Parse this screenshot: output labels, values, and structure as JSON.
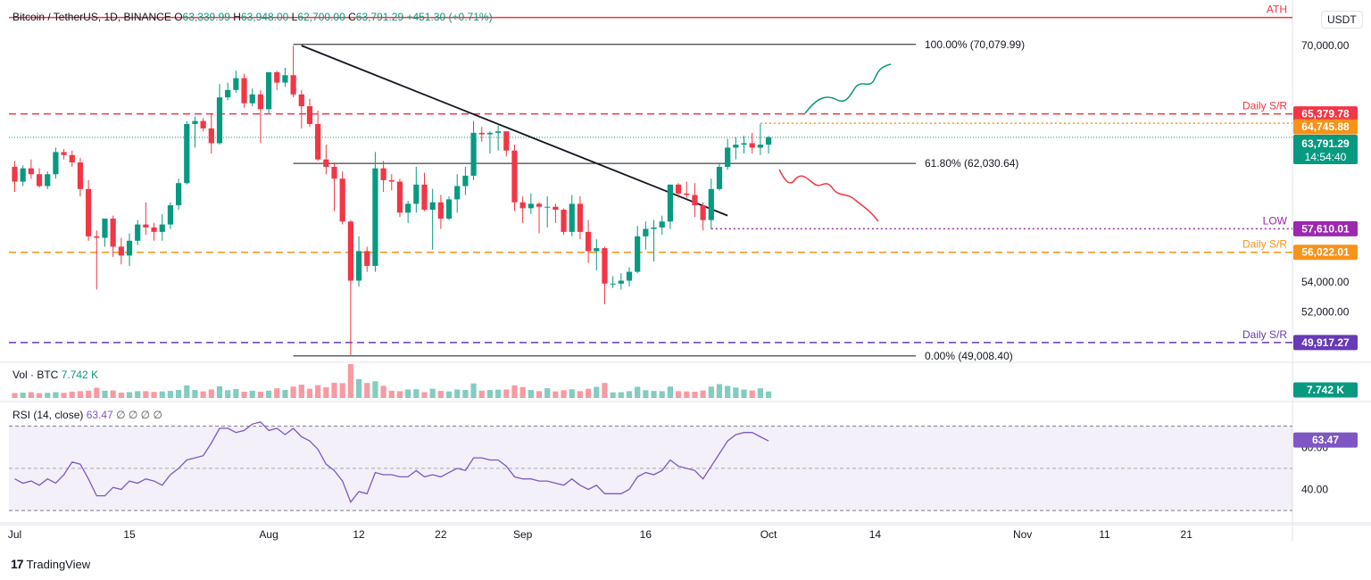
{
  "header": {
    "symbol": "Bitcoin / TetherUS, 1D, BINANCE",
    "o_label": "O",
    "o": "63,339.99",
    "h_label": "H",
    "h": "63,948.00",
    "l_label": "L",
    "l": "62,700.00",
    "c_label": "C",
    "c": "63,791.29",
    "change": "+451.30 (+0.71%)"
  },
  "currency": "USDT",
  "vol_legend": {
    "label": "Vol · BTC",
    "value": "7.742 K"
  },
  "rsi_legend": {
    "label": "RSI (14, close)",
    "value": "63.47",
    "extra": "∅ ∅ ∅ ∅"
  },
  "logo": "TradingView",
  "colors": {
    "up": "#089981",
    "down": "#f23645",
    "ath": "#f23645",
    "sr_red": "#f23645",
    "orange": "#f7931a",
    "purple": "#7e57c2",
    "navy": "#673ab7"
  },
  "chart_data": {
    "type": "candlestick",
    "price_axis": {
      "min": 48700,
      "max": 72000,
      "ticks": [
        "70,000.00",
        "54,000.00",
        "52,000.00"
      ],
      "tick_values": [
        70000,
        54000,
        52000
      ]
    },
    "time_axis": {
      "labels": [
        "Jul",
        "15",
        "Aug",
        "12",
        "22",
        "Sep",
        "16",
        "Oct",
        "14",
        "Nov",
        "11",
        "21"
      ],
      "day_index": [
        0,
        14,
        31,
        42,
        52,
        62,
        77,
        92,
        105,
        123,
        133,
        143
      ]
    },
    "candles_start": "2024-06-25",
    "candles": [
      [
        61800,
        62200,
        60100,
        60800
      ],
      [
        60800,
        61900,
        60500,
        61700
      ],
      [
        61700,
        62300,
        61000,
        61300
      ],
      [
        61300,
        61700,
        60400,
        60500
      ],
      [
        60500,
        61500,
        60300,
        61300
      ],
      [
        61300,
        63100,
        61000,
        62800
      ],
      [
        62800,
        63000,
        62300,
        62600
      ],
      [
        62600,
        62900,
        61800,
        62100
      ],
      [
        62100,
        62400,
        59800,
        60300
      ],
      [
        60300,
        60900,
        56800,
        57100
      ],
      [
        57100,
        57500,
        53500,
        57000
      ],
      [
        57000,
        58300,
        56400,
        58300
      ],
      [
        58300,
        58500,
        55700,
        56400
      ],
      [
        56400,
        57000,
        55200,
        55800
      ],
      [
        55800,
        57300,
        55100,
        56800
      ],
      [
        56800,
        58200,
        56500,
        57900
      ],
      [
        57900,
        59400,
        57200,
        57700
      ],
      [
        57700,
        58000,
        56800,
        57400
      ],
      [
        57400,
        58600,
        56800,
        57900
      ],
      [
        57900,
        59400,
        57600,
        59200
      ],
      [
        59200,
        61000,
        58900,
        60700
      ],
      [
        60700,
        64900,
        60600,
        64700
      ],
      [
        64700,
        65200,
        63100,
        64900
      ],
      [
        64900,
        65100,
        64200,
        64400
      ],
      [
        64400,
        65400,
        62700,
        63400
      ],
      [
        63400,
        67400,
        63300,
        66500
      ],
      [
        66500,
        67500,
        66300,
        67000
      ],
      [
        67000,
        68300,
        66800,
        67800
      ],
      [
        67800,
        68100,
        65800,
        66100
      ],
      [
        66100,
        67100,
        65900,
        66700
      ],
      [
        66700,
        67000,
        63400,
        65700
      ],
      [
        65700,
        68200,
        65400,
        68200
      ],
      [
        68200,
        68300,
        67000,
        67500
      ],
      [
        67500,
        68500,
        67200,
        68000
      ],
      [
        68000,
        70000,
        66500,
        66700
      ],
      [
        66700,
        67000,
        64400,
        65900
      ],
      [
        65900,
        66400,
        64500,
        64700
      ],
      [
        64700,
        65600,
        62200,
        62300
      ],
      [
        62300,
        63300,
        61300,
        61800
      ],
      [
        61800,
        62100,
        58800,
        61000
      ],
      [
        61000,
        61500,
        57900,
        58100
      ],
      [
        58100,
        58200,
        49000,
        54100
      ],
      [
        54100,
        57100,
        53700,
        56100
      ],
      [
        56100,
        56400,
        54700,
        55100
      ],
      [
        55100,
        62800,
        54700,
        61700
      ],
      [
        61700,
        62200,
        60100,
        60900
      ],
      [
        60900,
        61300,
        60200,
        60800
      ],
      [
        60800,
        61000,
        58400,
        58700
      ],
      [
        58700,
        59500,
        58000,
        59300
      ],
      [
        59300,
        61800,
        58700,
        60600
      ],
      [
        60600,
        61400,
        58800,
        58900
      ],
      [
        58900,
        60300,
        56200,
        59400
      ],
      [
        59400,
        59900,
        57600,
        58300
      ],
      [
        58300,
        59800,
        58200,
        59600
      ],
      [
        59600,
        61300,
        58700,
        60500
      ],
      [
        60500,
        61800,
        59900,
        61200
      ],
      [
        61200,
        64900,
        60900,
        64100
      ],
      [
        64100,
        64500,
        63500,
        64000
      ],
      [
        64000,
        64200,
        62700,
        64100
      ],
      [
        64100,
        64600,
        62900,
        64200
      ],
      [
        64200,
        64200,
        62500,
        62900
      ],
      [
        62900,
        63300,
        58800,
        59400
      ],
      [
        59400,
        59800,
        58000,
        59000
      ],
      [
        59000,
        60000,
        58600,
        59300
      ],
      [
        59300,
        59400,
        57300,
        59100
      ],
      [
        59100,
        59800,
        57700,
        59100
      ],
      [
        59100,
        59300,
        58000,
        58900
      ],
      [
        58900,
        59000,
        57200,
        57400
      ],
      [
        57400,
        59900,
        57100,
        59300
      ],
      [
        59300,
        59800,
        56900,
        57400
      ],
      [
        57400,
        58200,
        55300,
        56100
      ],
      [
        56100,
        56900,
        54800,
        56300
      ],
      [
        56300,
        56400,
        52500,
        53900
      ],
      [
        53900,
        54400,
        53600,
        53900
      ],
      [
        53900,
        54600,
        53500,
        54100
      ],
      [
        54100,
        55000,
        53700,
        54700
      ],
      [
        54700,
        57800,
        54600,
        57100
      ],
      [
        57100,
        58100,
        56200,
        57600
      ],
      [
        57600,
        58200,
        55400,
        57700
      ],
      [
        57700,
        58500,
        57200,
        58100
      ],
      [
        58100,
        60600,
        57600,
        60600
      ],
      [
        60600,
        60700,
        59700,
        60000
      ],
      [
        60000,
        60800,
        59700,
        59900
      ],
      [
        59900,
        60700,
        58400,
        59200
      ],
      [
        59200,
        59400,
        57500,
        58200
      ],
      [
        58200,
        61000,
        57600,
        60300
      ],
      [
        60300,
        62000,
        60200,
        61800
      ],
      [
        61800,
        63700,
        61600,
        63100
      ],
      [
        63100,
        63800,
        62300,
        63300
      ],
      [
        63300,
        63900,
        62700,
        63400
      ],
      [
        63400,
        64100,
        62700,
        63100
      ],
      [
        63100,
        64700,
        62600,
        63300
      ],
      [
        63300,
        63900,
        62700,
        63800
      ]
    ],
    "volumes": [
      20,
      22,
      24,
      20,
      21,
      24,
      21,
      26,
      28,
      30,
      42,
      30,
      31,
      22,
      24,
      28,
      28,
      25,
      27,
      29,
      33,
      52,
      33,
      27,
      35,
      48,
      32,
      37,
      26,
      30,
      26,
      30,
      40,
      33,
      47,
      55,
      38,
      53,
      44,
      63,
      61,
      140,
      78,
      62,
      69,
      50,
      30,
      28,
      35,
      36,
      24,
      38,
      29,
      27,
      35,
      33,
      60,
      30,
      33,
      34,
      35,
      52,
      45,
      33,
      28,
      40,
      27,
      32,
      36,
      28,
      38,
      46,
      62,
      23,
      24,
      28,
      46,
      32,
      29,
      28,
      47,
      28,
      27,
      26,
      31,
      47,
      57,
      50,
      43,
      35,
      31,
      40,
      27
    ],
    "rsi": [
      45,
      43,
      44,
      42,
      45,
      43,
      47,
      53,
      52,
      45,
      37,
      37,
      41,
      40,
      44,
      43,
      45,
      44,
      42,
      47,
      50,
      54,
      55,
      56,
      62,
      69,
      69,
      67,
      68,
      71,
      72,
      68,
      69,
      66,
      69,
      65,
      63,
      59,
      52,
      49,
      44,
      34,
      39,
      38,
      48,
      47,
      47,
      46,
      46,
      49,
      46,
      47,
      46,
      48,
      50,
      49,
      55,
      55,
      54,
      54,
      51,
      46,
      45,
      45,
      44,
      44,
      43,
      42,
      45,
      42,
      40,
      42,
      38,
      38,
      38,
      40,
      46,
      48,
      47,
      49,
      54,
      51,
      50,
      49,
      45,
      51,
      57,
      63,
      66,
      67,
      67,
      65,
      63
    ],
    "rsi_axis": {
      "min": 25,
      "max": 80,
      "ticks": [
        "60.00",
        "40.00"
      ],
      "tick_values": [
        60,
        40
      ],
      "upper_band": 70,
      "lower_band": 30,
      "mid": 50
    },
    "levels": [
      {
        "name": "ATH",
        "value": 71900,
        "color": "#f23645",
        "style": "solid",
        "label": "ATH"
      },
      {
        "name": "Daily S/R",
        "value": 65379.78,
        "color": "#f23645",
        "style": "dashed",
        "label": "Daily S/R",
        "tag": "65,379.78"
      },
      {
        "name": "Daily S/R",
        "value": 56022.01,
        "color": "#f7931a",
        "style": "dashed",
        "label": "Daily S/R",
        "tag": "56,022.01"
      },
      {
        "name": "Daily S/R",
        "value": 49917.27,
        "color": "#673ab7",
        "style": "dashed",
        "label": "Daily S/R",
        "tag": "49,917.27"
      },
      {
        "name": "LOW",
        "value": 57610.01,
        "color": "#9c27b0",
        "style": "dotted",
        "label": "LOW",
        "tag": "57,610.01"
      }
    ],
    "price_tags": [
      {
        "value": 64745.88,
        "text": "64,745.88",
        "color": "#f7931a"
      },
      {
        "value": 63791.29,
        "text": "63,791.29",
        "sub": "14:54:40",
        "color": "#089981"
      }
    ],
    "fib": [
      {
        "value": 70079.99,
        "label": "100.00% (70,079.99)"
      },
      {
        "value": 62030.64,
        "label": "61.80% (62,030.64)"
      },
      {
        "value": 49008.4,
        "label": "0.00% (49,008.40)"
      }
    ],
    "vol_tag": "7.742 K",
    "rsi_tag": "63.47",
    "trendline": {
      "from": [
        35,
        70000
      ],
      "to": [
        87,
        58500
      ]
    }
  }
}
